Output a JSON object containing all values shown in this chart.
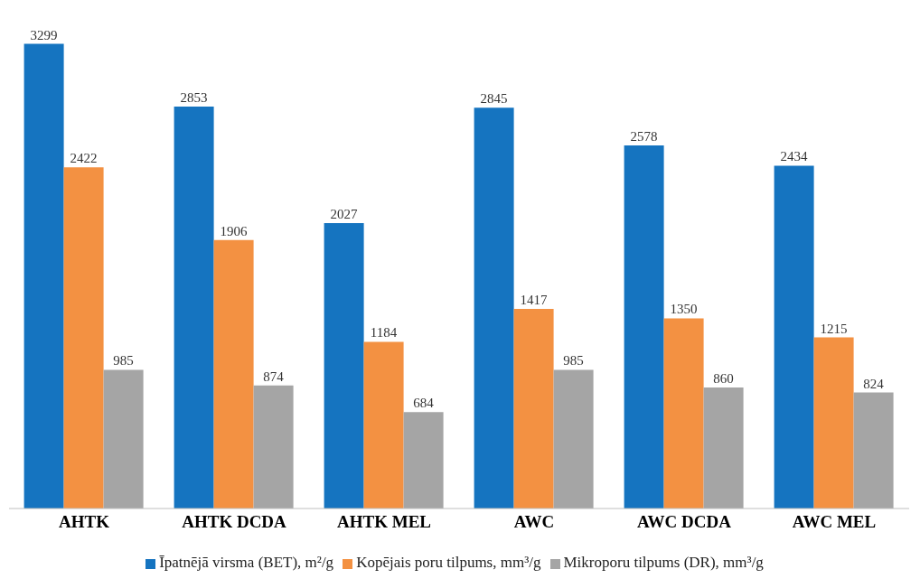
{
  "chart_data": {
    "type": "bar",
    "categories": [
      "AHTK",
      "AHTK DCDA",
      "AHTK MEL",
      "AWC",
      "AWC DCDA",
      "AWC MEL"
    ],
    "series": [
      {
        "name": "Īpatnējā virsma (BET), m²/g",
        "color": "#1574c0",
        "values": [
          3299,
          2853,
          2027,
          2845,
          2578,
          2434
        ]
      },
      {
        "name": "Kopējais poru tilpums, mm³/g",
        "color": "#f39142",
        "values": [
          2422,
          1906,
          1184,
          1417,
          1350,
          1215
        ]
      },
      {
        "name": "Mikroporu tilpums (DR), mm³/g",
        "color": "#a5a5a5",
        "values": [
          985,
          874,
          684,
          985,
          860,
          824
        ]
      }
    ],
    "data_labels": true,
    "grid": false,
    "legend": "bottom"
  }
}
